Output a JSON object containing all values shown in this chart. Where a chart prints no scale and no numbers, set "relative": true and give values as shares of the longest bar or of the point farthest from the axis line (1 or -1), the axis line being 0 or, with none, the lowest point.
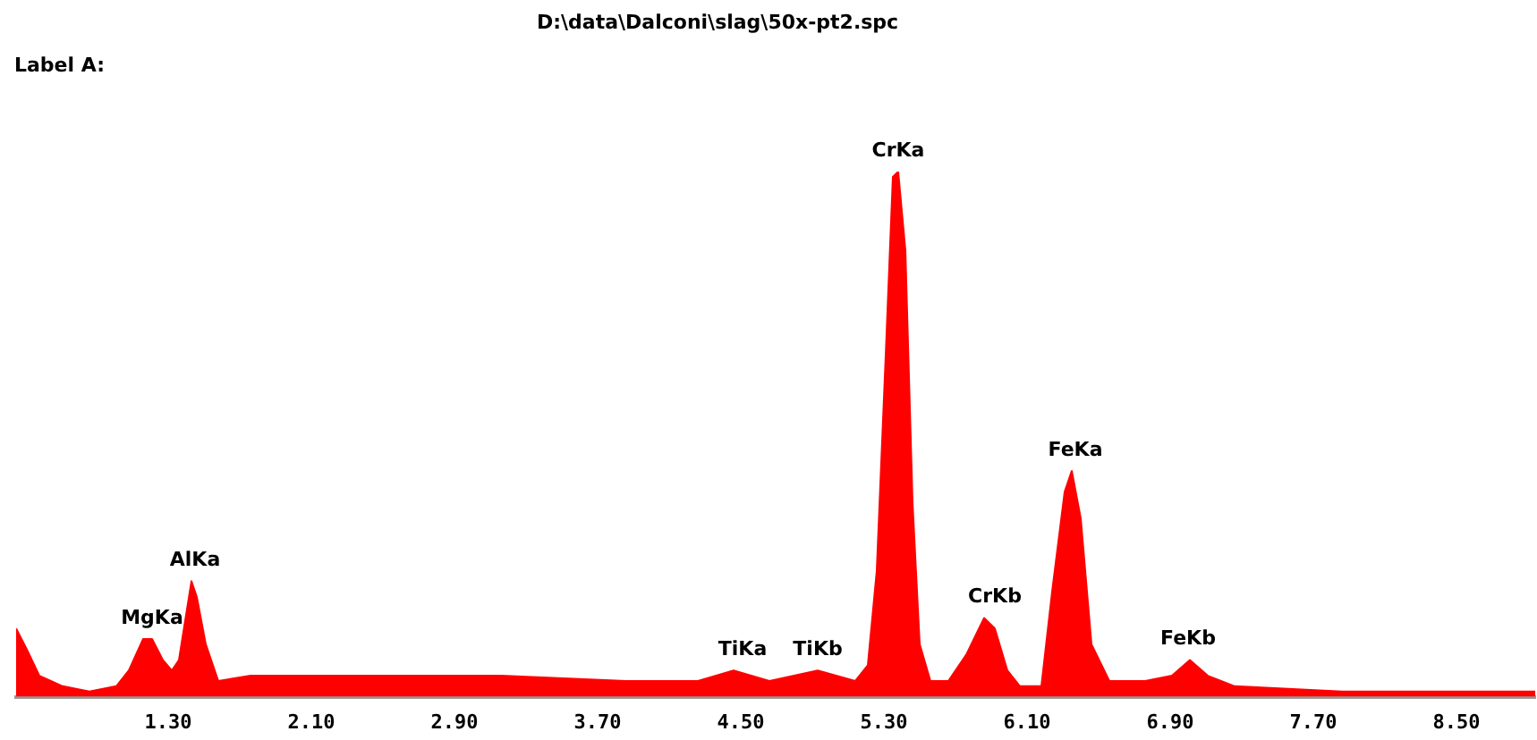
{
  "chart_data": {
    "type": "area",
    "title": "D:\\data\\Dalconi\\slag\\50x-pt2.spc",
    "relative": true,
    "color": "#ff0000",
    "tick_labels": "x",
    "grid": false,
    "legend": false,
    "marker": "none",
    "x": [
      0.45,
      0.51,
      0.58,
      0.71,
      0.86,
      1.01,
      1.08,
      1.16,
      1.21,
      1.27,
      1.32,
      1.36,
      1.43,
      1.46,
      1.51,
      1.58,
      1.76,
      2.36,
      3.16,
      3.86,
      4.26,
      4.46,
      4.66,
      4.93,
      5.14,
      5.21,
      5.26,
      5.31,
      5.35,
      5.38,
      5.42,
      5.46,
      5.5,
      5.56,
      5.66,
      5.76,
      5.86,
      5.92,
      5.99,
      6.06,
      6.18,
      6.24,
      6.31,
      6.35,
      6.4,
      6.46,
      6.56,
      6.76,
      6.91,
      7.01,
      7.11,
      7.26,
      7.86,
      8.94
    ],
    "values": [
      0.13,
      0.09,
      0.04,
      0.02,
      0.01,
      0.02,
      0.05,
      0.11,
      0.11,
      0.07,
      0.05,
      0.07,
      0.22,
      0.19,
      0.1,
      0.03,
      0.04,
      0.04,
      0.04,
      0.03,
      0.03,
      0.05,
      0.03,
      0.05,
      0.03,
      0.06,
      0.24,
      0.65,
      0.99,
      1,
      0.85,
      0.37,
      0.1,
      0.03,
      0.03,
      0.08,
      0.15,
      0.13,
      0.05,
      0.02,
      0.02,
      0.2,
      0.39,
      0.43,
      0.34,
      0.1,
      0.03,
      0.03,
      0.04,
      0.07,
      0.04,
      0.02,
      0.01,
      0.01
    ],
    "xlim": [
      0.45,
      8.94
    ],
    "xticks": [
      {
        "value": 1.3,
        "label": "1.30"
      },
      {
        "value": 2.1,
        "label": "2.10"
      },
      {
        "value": 2.9,
        "label": "2.90"
      },
      {
        "value": 3.7,
        "label": "3.70"
      },
      {
        "value": 4.5,
        "label": "4.50"
      },
      {
        "value": 5.3,
        "label": "5.30"
      },
      {
        "value": 6.1,
        "label": "6.10"
      },
      {
        "value": 6.9,
        "label": "6.90"
      },
      {
        "value": 7.7,
        "label": "7.70"
      },
      {
        "value": 8.5,
        "label": "8.50"
      }
    ],
    "annotations": [
      "Label A:",
      {
        "text": "MgKa",
        "x": 1.21,
        "y": 0.11
      },
      {
        "text": "AlKa",
        "x": 1.45,
        "y": 0.22
      },
      {
        "text": "TiKa",
        "x": 4.51,
        "y": 0.05
      },
      {
        "text": "TiKb",
        "x": 4.93,
        "y": 0.05
      },
      {
        "text": "CrKa",
        "x": 5.38,
        "y": 1
      },
      {
        "text": "CrKb",
        "x": 5.92,
        "y": 0.15
      },
      {
        "text": "FeKa",
        "x": 6.37,
        "y": 0.43
      },
      {
        "text": "FeKb",
        "x": 7.0,
        "y": 0.07
      }
    ]
  }
}
